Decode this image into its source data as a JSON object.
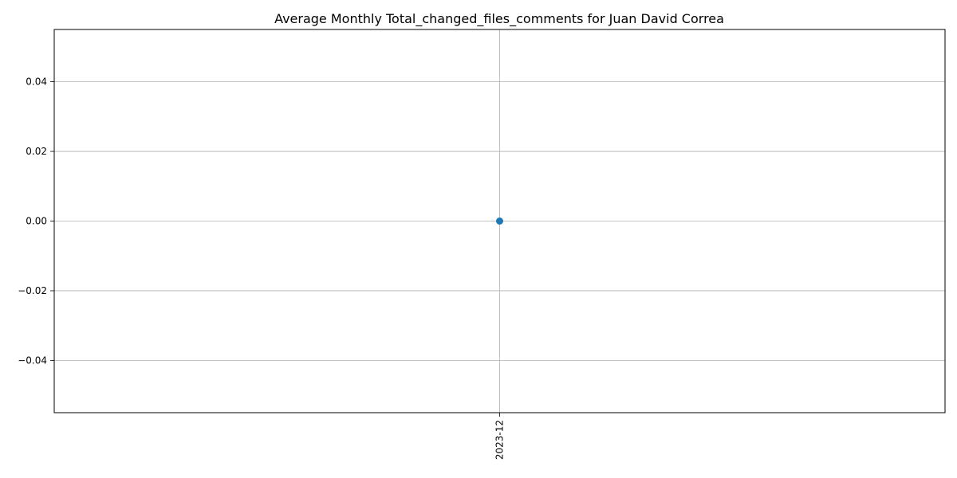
{
  "chart_data": {
    "type": "line",
    "title": "Average Monthly Total_changed_files_comments for Juan David Correa",
    "xlabel": "",
    "ylabel": "",
    "categories": [
      "2023-12"
    ],
    "series": [
      {
        "values": [
          0.0
        ]
      }
    ],
    "ylim": [
      -0.055,
      0.055
    ],
    "yticks": [
      -0.04,
      -0.02,
      0.0,
      0.02,
      0.04
    ],
    "ytick_labels": [
      "−0.04",
      "−0.02",
      "0.00",
      "0.02",
      "0.04"
    ],
    "grid": true,
    "marker": "circle",
    "xtick_rotation": "vertical",
    "colors": {
      "series": "#1f77b4",
      "grid": "#b0b0b0",
      "axes": "#000000"
    }
  }
}
